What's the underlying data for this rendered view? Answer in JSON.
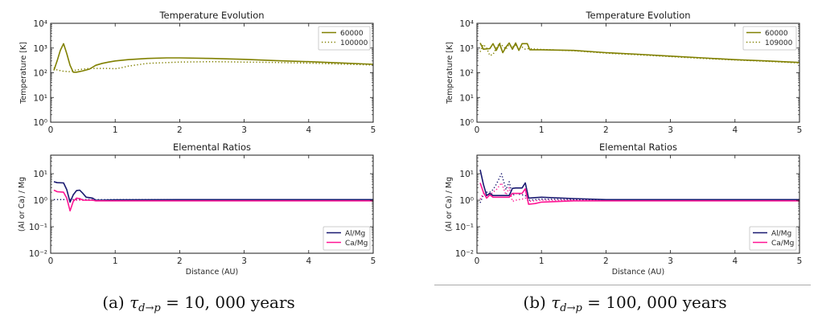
{
  "captions": [
    {
      "label": "(a)",
      "symbol": "τ",
      "subscript": "d→p",
      "value": "= 10, 000 years"
    },
    {
      "label": "(b)",
      "symbol": "τ",
      "subscript": "d→p",
      "value": "= 100, 000 years"
    }
  ],
  "colors": {
    "olive": "#808000",
    "navy": "#191970",
    "pink": "#ff1493"
  },
  "chart_data": [
    {
      "id": "panel-a-temperature",
      "type": "line",
      "title": "Temperature Evolution",
      "xlabel": "",
      "ylabel": "Temperature [K]",
      "xlim": [
        0,
        5
      ],
      "ylim": [
        1,
        10000
      ],
      "yscale": "log",
      "grid": false,
      "xticks": [
        0,
        1,
        2,
        3,
        4,
        5
      ],
      "xtick_labels": [
        "0",
        "1",
        "2",
        "3",
        "4",
        "5"
      ],
      "yticks": [
        1,
        10,
        100,
        1000,
        10000
      ],
      "ytick_labels": [
        "10⁰",
        "10¹",
        "10²",
        "10³",
        "10⁴"
      ],
      "legend": {
        "placement": "top-right",
        "entries": [
          {
            "label": "60000",
            "color": "#808000",
            "style": "solid"
          },
          {
            "label": "100000",
            "color": "#808000",
            "style": "dotted"
          }
        ]
      },
      "series": [
        {
          "name": "60000",
          "style": "solid",
          "color": "#808000",
          "x": [
            0.05,
            0.1,
            0.15,
            0.2,
            0.25,
            0.3,
            0.35,
            0.4,
            0.5,
            0.6,
            0.7,
            0.8,
            0.9,
            1.0,
            1.2,
            1.5,
            1.8,
            2.0,
            2.5,
            3.0,
            3.5,
            4.0,
            4.5,
            5.0
          ],
          "y": [
            125,
            300,
            800,
            1500,
            600,
            200,
            105,
            105,
            120,
            140,
            200,
            240,
            270,
            300,
            340,
            380,
            400,
            400,
            380,
            350,
            310,
            280,
            250,
            220
          ]
        },
        {
          "name": "100000",
          "style": "dotted",
          "color": "#808000",
          "x": [
            0.05,
            0.1,
            0.2,
            0.3,
            0.4,
            0.5,
            0.6,
            0.7,
            0.8,
            0.9,
            1.0,
            1.1,
            1.2,
            1.5,
            2.0,
            2.5,
            3.0,
            3.5,
            4.0,
            4.5,
            5.0
          ],
          "y": [
            160,
            130,
            115,
            110,
            130,
            140,
            150,
            150,
            150,
            150,
            145,
            160,
            185,
            240,
            270,
            280,
            270,
            260,
            245,
            225,
            205
          ]
        }
      ]
    },
    {
      "id": "panel-a-elemental-ratios",
      "type": "line",
      "title": "Elemental Ratios",
      "xlabel": "Distance (AU)",
      "ylabel": "(Al or Ca) / Mg",
      "xlim": [
        0,
        5
      ],
      "ylim": [
        0.01,
        50
      ],
      "yscale": "log",
      "grid": false,
      "xticks": [
        0,
        1,
        2,
        3,
        4,
        5
      ],
      "xtick_labels": [
        "0",
        "1",
        "2",
        "3",
        "4",
        "5"
      ],
      "yticks": [
        0.01,
        0.1,
        1,
        10
      ],
      "ytick_labels": [
        "10⁻²",
        "10⁻¹",
        "10⁰",
        "10¹"
      ],
      "legend": {
        "placement": "lower-right",
        "entries": [
          {
            "label": "Al/Mg",
            "color": "#191970",
            "style": "solid"
          },
          {
            "label": "Ca/Mg",
            "color": "#ff1493",
            "style": "solid"
          }
        ]
      },
      "series": [
        {
          "name": "Al/Mg (dotted)",
          "style": "dotted",
          "color": "#191970",
          "x": [
            0.05,
            0.3,
            0.7,
            1,
            2,
            3,
            4,
            5
          ],
          "y": [
            1.05,
            1.05,
            1.05,
            1.05,
            1.05,
            1.05,
            1.05,
            1.05
          ]
        },
        {
          "name": "Ca/Mg (dotted)",
          "style": "dotted",
          "color": "#ff1493",
          "x": [
            0.25,
            0.7,
            1,
            2,
            3,
            4,
            5
          ],
          "y": [
            1.0,
            1.0,
            1.0,
            1.0,
            1.0,
            1.0,
            1.0
          ]
        },
        {
          "name": "Al/Mg",
          "style": "solid",
          "color": "#191970",
          "x": [
            0.05,
            0.1,
            0.2,
            0.25,
            0.3,
            0.35,
            0.4,
            0.45,
            0.5,
            0.55,
            0.6,
            0.65,
            0.7,
            0.8,
            1.0,
            2.0,
            3.0,
            4.0,
            5.0
          ],
          "y": [
            5,
            4.6,
            4.5,
            2.5,
            0.85,
            1.6,
            2.3,
            2.4,
            1.8,
            1.3,
            1.25,
            1.2,
            1.0,
            1.0,
            1.03,
            1.05,
            1.05,
            1.05,
            1.05
          ]
        },
        {
          "name": "Ca/Mg",
          "style": "solid",
          "color": "#ff1493",
          "x": [
            0.05,
            0.1,
            0.2,
            0.25,
            0.3,
            0.35,
            0.4,
            0.45,
            0.5,
            0.55,
            0.6,
            0.65,
            0.7,
            0.8,
            1.0,
            2.0,
            3.0,
            4.0,
            5.0
          ],
          "y": [
            2.4,
            2.1,
            2.0,
            1.2,
            0.4,
            0.9,
            1.2,
            1.15,
            1.0,
            1.0,
            1.0,
            1.0,
            0.95,
            0.95,
            0.95,
            0.95,
            0.95,
            0.95,
            0.95
          ]
        }
      ]
    },
    {
      "id": "panel-b-temperature",
      "type": "line",
      "title": "Temperature Evolution",
      "xlabel": "",
      "ylabel": "Temperature [K]",
      "xlim": [
        0,
        5
      ],
      "ylim": [
        1,
        10000
      ],
      "yscale": "log",
      "grid": false,
      "xticks": [
        0,
        1,
        2,
        3,
        4,
        5
      ],
      "xtick_labels": [
        "0",
        "1",
        "2",
        "3",
        "4",
        "5"
      ],
      "yticks": [
        1,
        10,
        100,
        1000,
        10000
      ],
      "ytick_labels": [
        "10⁰",
        "10¹",
        "10²",
        "10³",
        "10⁴"
      ],
      "legend": {
        "placement": "top-right",
        "entries": [
          {
            "label": "60000",
            "color": "#808000",
            "style": "solid"
          },
          {
            "label": "109000",
            "color": "#808000",
            "style": "dotted"
          }
        ]
      },
      "series": [
        {
          "name": "60000",
          "style": "solid",
          "color": "#808000",
          "x": [
            0.05,
            0.1,
            0.2,
            0.25,
            0.3,
            0.35,
            0.4,
            0.45,
            0.5,
            0.55,
            0.6,
            0.65,
            0.7,
            0.75,
            0.78,
            0.82,
            1.0,
            1.5,
            2.0,
            2.5,
            3.0,
            3.5,
            4.0,
            4.5,
            5.0
          ],
          "y": [
            1600,
            900,
            950,
            1500,
            800,
            1500,
            650,
            1100,
            1600,
            900,
            1600,
            800,
            1500,
            1500,
            1500,
            850,
            850,
            800,
            650,
            560,
            470,
            400,
            340,
            300,
            260
          ]
        },
        {
          "name": "109000",
          "style": "dotted",
          "color": "#808000",
          "x": [
            0.05,
            0.1,
            0.15,
            0.2,
            0.25,
            0.3,
            0.35,
            0.4,
            0.45,
            0.5,
            0.55,
            0.6,
            0.65,
            0.7,
            0.75,
            0.8,
            1.0,
            1.5,
            2.0,
            2.5,
            3.0,
            3.5,
            4.0,
            4.5,
            5.0
          ],
          "y": [
            700,
            1400,
            1000,
            500,
            550,
            1000,
            1600,
            1200,
            900,
            1400,
            1100,
            1300,
            900,
            1100,
            900,
            950,
            880,
            780,
            620,
            530,
            450,
            380,
            330,
            290,
            250
          ]
        }
      ]
    },
    {
      "id": "panel-b-elemental-ratios",
      "type": "line",
      "title": "Elemental Ratios",
      "xlabel": "Distance (AU)",
      "ylabel": "(Al or Ca) / Mg",
      "xlim": [
        0,
        5
      ],
      "ylim": [
        0.01,
        50
      ],
      "yscale": "log",
      "grid": false,
      "xticks": [
        0,
        1,
        2,
        3,
        4,
        5
      ],
      "xtick_labels": [
        "0",
        "1",
        "2",
        "3",
        "4",
        "5"
      ],
      "yticks": [
        0.01,
        0.1,
        1,
        10
      ],
      "ytick_labels": [
        "10⁻²",
        "10⁻¹",
        "10⁰",
        "10¹"
      ],
      "legend": {
        "placement": "lower-right",
        "entries": [
          {
            "label": "Al/Mg",
            "color": "#191970",
            "style": "solid"
          },
          {
            "label": "Ca/Mg",
            "color": "#ff1493",
            "style": "solid"
          }
        ]
      },
      "series": [
        {
          "name": "Al/Mg (dotted)",
          "style": "dotted",
          "color": "#191970",
          "x": [
            0.05,
            0.1,
            0.15,
            0.2,
            0.25,
            0.3,
            0.38,
            0.45,
            0.5,
            0.55,
            0.6,
            0.7,
            0.75,
            0.8,
            1.0,
            1.5,
            2.0,
            3.0,
            4.0,
            5.0
          ],
          "y": [
            0.8,
            1.6,
            2,
            2,
            2.5,
            4,
            10,
            2.5,
            5,
            1.5,
            1.8,
            1.6,
            1.5,
            1.0,
            1.1,
            1.05,
            1.05,
            1.05,
            1.05,
            1.05
          ]
        },
        {
          "name": "Ca/Mg (dotted)",
          "style": "dotted",
          "color": "#ff1493",
          "x": [
            0.05,
            0.1,
            0.15,
            0.2,
            0.25,
            0.3,
            0.38,
            0.45,
            0.5,
            0.55,
            0.6,
            0.7,
            0.75,
            0.8,
            1.0,
            1.5,
            2.0,
            3.0,
            4.0,
            5.0
          ],
          "y": [
            1.1,
            1.8,
            1.5,
            1.6,
            2,
            2.5,
            4.5,
            1.6,
            3,
            0.9,
            1.0,
            1.1,
            1.2,
            0.9,
            1.0,
            1.0,
            1.0,
            1.0,
            1.0,
            1.0
          ]
        },
        {
          "name": "Al/Mg",
          "style": "solid",
          "color": "#191970",
          "x": [
            0.05,
            0.1,
            0.15,
            0.2,
            0.25,
            0.3,
            0.4,
            0.5,
            0.55,
            0.6,
            0.7,
            0.75,
            0.8,
            0.9,
            1.0,
            1.5,
            2.0,
            3.0,
            4.0,
            5.0
          ],
          "y": [
            14,
            4,
            1.5,
            1.8,
            1.5,
            1.5,
            1.5,
            1.5,
            2.8,
            2.9,
            2.9,
            4.5,
            1.2,
            1.25,
            1.3,
            1.15,
            1.05,
            1.05,
            1.05,
            1.05
          ]
        },
        {
          "name": "Ca/Mg",
          "style": "solid",
          "color": "#ff1493",
          "x": [
            0.05,
            0.1,
            0.15,
            0.2,
            0.25,
            0.3,
            0.4,
            0.5,
            0.55,
            0.6,
            0.7,
            0.75,
            0.8,
            0.9,
            1.0,
            1.5,
            2.0,
            3.0,
            4.0,
            5.0
          ],
          "y": [
            4.5,
            2,
            1.2,
            1.6,
            1.3,
            1.3,
            1.3,
            1.3,
            1.8,
            1.8,
            1.8,
            2.7,
            0.7,
            0.75,
            0.85,
            0.95,
            0.95,
            0.95,
            0.95,
            0.95
          ]
        }
      ]
    }
  ]
}
